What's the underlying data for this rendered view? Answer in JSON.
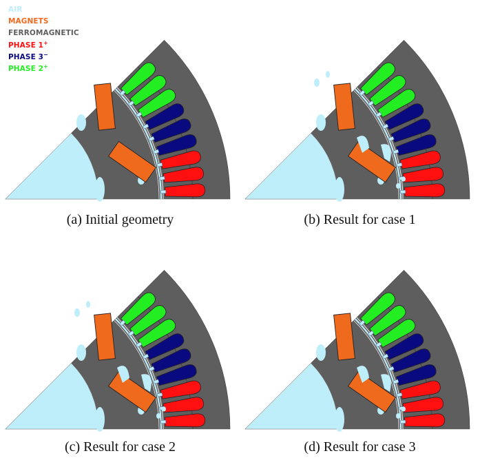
{
  "legend": {
    "air": "AIR",
    "magnets": "MAGNETS",
    "ferromagnetic": "FERROMAGNETIC",
    "phase1": "PHASE 1",
    "phase1_sign": "+",
    "phase3": "PHASE 3",
    "phase3_sign": "−",
    "phase2": "PHASE 2",
    "phase2_sign": "+"
  },
  "colors": {
    "air": "#bfeefb",
    "magnets": "#f06a1e",
    "ferromagnetic": "#5e5e5e",
    "phase1": "#ff1010",
    "phase3": "#0a0a80",
    "phase2": "#22ee22"
  },
  "panels": [
    {
      "caption": "(a) Initial geometry"
    },
    {
      "caption": "(b) Result for case 1"
    },
    {
      "caption": "(c) Result for case 2"
    },
    {
      "caption": "(d) Result for case 3"
    }
  ]
}
